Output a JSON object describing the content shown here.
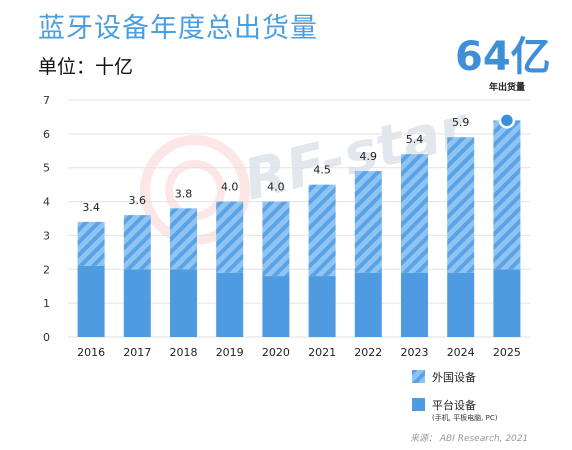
{
  "title": "蓝牙设备年度总出货量",
  "unit": "单位：十亿",
  "highlight": {
    "value": "64亿",
    "label": "年出货量"
  },
  "watermark": "RF-star",
  "source": "来源： ABI Research, 2021",
  "colors": {
    "solid": "#4f9be2",
    "hatch_light": "#8fc4f3",
    "hatch_dark": "#5aa3e6",
    "title": "#4a9fe0"
  },
  "chart_data": {
    "type": "bar",
    "categories": [
      "2016",
      "2017",
      "2018",
      "2019",
      "2020",
      "2021",
      "2022",
      "2023",
      "2024",
      "2025"
    ],
    "series": [
      {
        "name": "平台设备",
        "values": [
          2.1,
          2.0,
          2.0,
          1.9,
          1.8,
          1.8,
          1.9,
          1.9,
          1.9,
          2.0
        ]
      },
      {
        "name": "外国设备",
        "values": [
          1.3,
          1.6,
          1.8,
          2.1,
          2.2,
          2.7,
          3.0,
          3.5,
          4.0,
          4.4
        ]
      }
    ],
    "totals": [
      3.4,
      3.6,
      3.8,
      4.0,
      4.0,
      4.5,
      4.9,
      5.4,
      5.9,
      6.4
    ],
    "data_labels": [
      "3.4",
      "3.6",
      "3.8",
      "4.0",
      "4.0",
      "4.5",
      "4.9",
      "5.4",
      "5.9",
      ""
    ],
    "yticks": [
      "0",
      "1",
      "2",
      "3",
      "4",
      "5",
      "6",
      "7"
    ],
    "ylim": [
      0,
      7
    ],
    "grid": true,
    "legend_position": "bottom-right",
    "legend": [
      {
        "label": "外国设备",
        "note": ""
      },
      {
        "label": "平台设备",
        "note": "(手机, 平板电脑, PC)"
      }
    ]
  }
}
